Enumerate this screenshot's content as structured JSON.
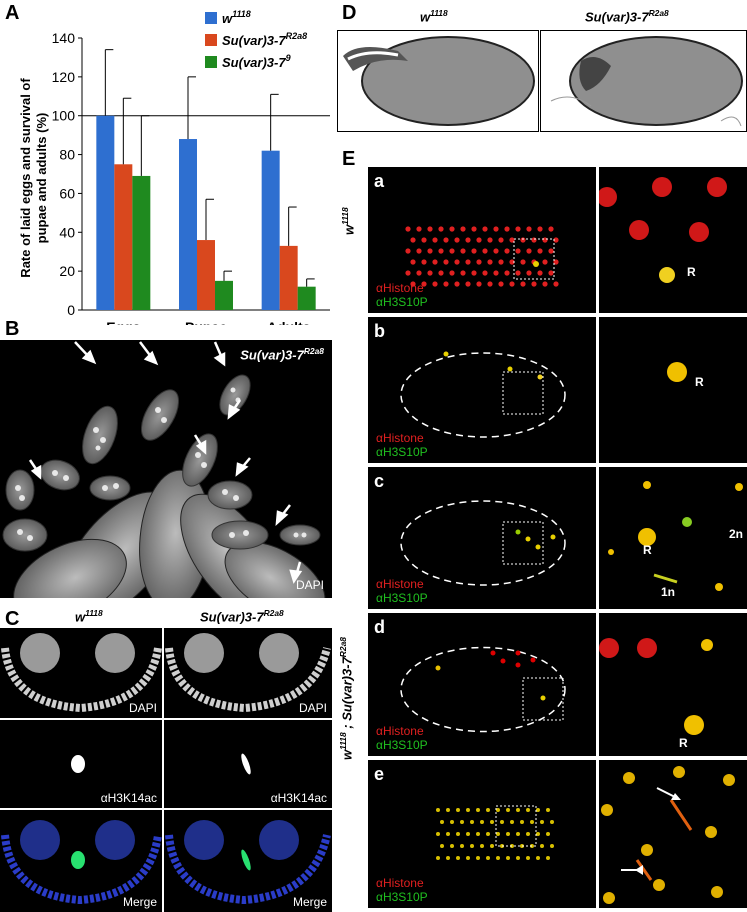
{
  "panels": {
    "A": "A",
    "B": "B",
    "C": "C",
    "D": "D",
    "E": "E"
  },
  "chart_data": {
    "type": "bar",
    "ylabel": "Rate of laid eggs and survival of pupae and adults (%)",
    "ylabel_line1": "Rate of laid eggs and survival of",
    "ylabel_line2": "pupae and adults (%)",
    "categories": [
      "Eggs",
      "Pupae",
      "Adults"
    ],
    "ylim": [
      0,
      140
    ],
    "yticks": [
      0,
      20,
      40,
      60,
      80,
      100,
      120,
      140
    ],
    "reference_line": 100,
    "series": [
      {
        "name": "w1118",
        "base": "w",
        "sup": "1118",
        "color": "#2E6FD0",
        "values": [
          100,
          88,
          82
        ],
        "errors": [
          34,
          32,
          29
        ]
      },
      {
        "name": "Su(var)3-7R2a8",
        "base": "Su(var)3-7",
        "sup": "R2a8",
        "color": "#D9481E",
        "values": [
          75,
          36,
          33
        ],
        "errors": [
          34,
          21,
          20
        ]
      },
      {
        "name": "Su(var)3-79",
        "base": "Su(var)3-7",
        "sup": "9",
        "color": "#1F8A1F",
        "values": [
          69,
          15,
          12
        ],
        "errors": [
          31,
          5,
          4
        ]
      }
    ]
  },
  "panelB": {
    "genotype_base": "Su(var)3-7",
    "genotype_sup": "R2a8",
    "stain": "DAPI"
  },
  "panelC": {
    "col1_base": "w",
    "col1_sup": "1118",
    "col2_base": "Su(var)3-7",
    "col2_sup": "R2a8",
    "row_labels": [
      "DAPI",
      "αH3K14ac",
      "Merge"
    ]
  },
  "panelD": {
    "col1_base": "w",
    "col1_sup": "1118",
    "col2_base": "Su(var)3-7",
    "col2_sup": "R2a8"
  },
  "panelE": {
    "side_label_top_base": "w",
    "side_label_top_sup": "1118",
    "side_label_bottom_base1": "w",
    "side_label_bottom_sup1": "1118",
    "side_label_bottom_sep": " ; ",
    "side_label_bottom_base2": "Su(var)3-7",
    "side_label_bottom_sup2": "R2a8",
    "stain1": "αHistone",
    "stain2": "αH3S10P",
    "rows": [
      {
        "letter": "a",
        "zoom_labels": [
          "R"
        ]
      },
      {
        "letter": "b",
        "zoom_labels": [
          "R"
        ]
      },
      {
        "letter": "c",
        "zoom_labels": [
          "R",
          "2n",
          "1n"
        ]
      },
      {
        "letter": "d",
        "zoom_labels": [
          "R"
        ]
      },
      {
        "letter": "e",
        "zoom_labels": []
      }
    ]
  }
}
